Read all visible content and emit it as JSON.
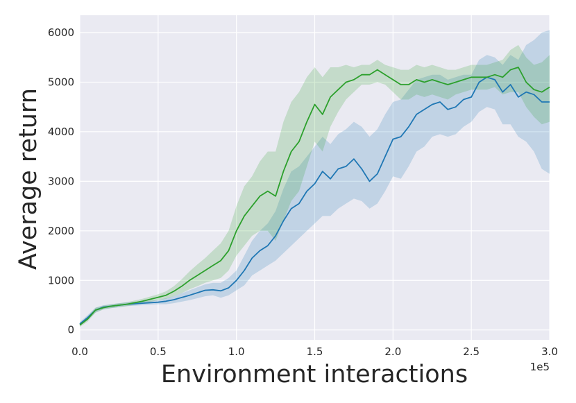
{
  "chart_data": {
    "type": "line",
    "title": "",
    "xlabel": "Environment interactions",
    "ylabel": "Average return",
    "x_offset_label": "1e5",
    "xlim": [
      0,
      3.0
    ],
    "ylim": [
      -200,
      6350
    ],
    "grid": true,
    "legend": "none",
    "background": "#eaeaf2",
    "x_ticks": [
      {
        "value": 0.0,
        "label": "0.0"
      },
      {
        "value": 0.5,
        "label": "0.5"
      },
      {
        "value": 1.0,
        "label": "1.0"
      },
      {
        "value": 1.5,
        "label": "1.5"
      },
      {
        "value": 2.0,
        "label": "2.0"
      },
      {
        "value": 2.5,
        "label": "2.5"
      },
      {
        "value": 3.0,
        "label": "3.0"
      }
    ],
    "y_ticks": [
      {
        "value": 0,
        "label": "0"
      },
      {
        "value": 1000,
        "label": "1000"
      },
      {
        "value": 2000,
        "label": "2000"
      },
      {
        "value": 3000,
        "label": "3000"
      },
      {
        "value": 4000,
        "label": "4000"
      },
      {
        "value": 5000,
        "label": "5000"
      },
      {
        "value": 6000,
        "label": "6000"
      }
    ],
    "series": [
      {
        "color": "#1f77b4",
        "x": [
          0.0,
          0.05,
          0.1,
          0.15,
          0.2,
          0.3,
          0.4,
          0.5,
          0.55,
          0.6,
          0.7,
          0.75,
          0.8,
          0.85,
          0.9,
          0.95,
          1.0,
          1.05,
          1.1,
          1.15,
          1.2,
          1.25,
          1.3,
          1.35,
          1.4,
          1.45,
          1.5,
          1.55,
          1.6,
          1.65,
          1.7,
          1.75,
          1.8,
          1.85,
          1.9,
          1.95,
          2.0,
          2.05,
          2.1,
          2.15,
          2.2,
          2.25,
          2.3,
          2.35,
          2.4,
          2.45,
          2.5,
          2.55,
          2.6,
          2.65,
          2.7,
          2.75,
          2.8,
          2.85,
          2.9,
          2.95,
          3.0
        ],
        "y": [
          120,
          250,
          400,
          460,
          480,
          520,
          540,
          560,
          580,
          610,
          700,
          750,
          800,
          810,
          790,
          850,
          1000,
          1200,
          1450,
          1600,
          1700,
          1900,
          2200,
          2450,
          2550,
          2800,
          2950,
          3200,
          3050,
          3250,
          3300,
          3450,
          3250,
          3000,
          3150,
          3500,
          3850,
          3900,
          4100,
          4350,
          4450,
          4550,
          4600,
          4450,
          4500,
          4650,
          4700,
          5000,
          5100,
          5050,
          4800,
          4950,
          4700,
          4800,
          4750,
          4600,
          4600
        ],
        "y_lower": [
          80,
          200,
          350,
          420,
          440,
          480,
          500,
          520,
          520,
          540,
          600,
          640,
          680,
          700,
          650,
          700,
          800,
          900,
          1100,
          1200,
          1300,
          1400,
          1550,
          1700,
          1850,
          2000,
          2150,
          2300,
          2300,
          2450,
          2550,
          2650,
          2600,
          2450,
          2550,
          2800,
          3100,
          3050,
          3300,
          3600,
          3700,
          3900,
          3950,
          3900,
          3950,
          4100,
          4200,
          4400,
          4500,
          4450,
          4150,
          4150,
          3900,
          3800,
          3600,
          3250,
          3150
        ],
        "y_upper": [
          160,
          300,
          450,
          500,
          520,
          560,
          580,
          600,
          640,
          680,
          800,
          860,
          920,
          950,
          950,
          1050,
          1200,
          1500,
          1800,
          2000,
          2150,
          2400,
          2850,
          3200,
          3300,
          3500,
          3700,
          3900,
          3750,
          3950,
          4050,
          4200,
          4100,
          3900,
          4050,
          4350,
          4600,
          4650,
          4850,
          5050,
          5100,
          5150,
          5150,
          5050,
          5100,
          5150,
          5150,
          5450,
          5550,
          5500,
          5350,
          5550,
          5450,
          5750,
          5850,
          6000,
          6050
        ]
      },
      {
        "color": "#2ca02c",
        "x": [
          0.0,
          0.05,
          0.1,
          0.15,
          0.2,
          0.3,
          0.4,
          0.5,
          0.55,
          0.6,
          0.65,
          0.7,
          0.75,
          0.8,
          0.85,
          0.9,
          0.95,
          1.0,
          1.05,
          1.1,
          1.15,
          1.2,
          1.25,
          1.3,
          1.35,
          1.4,
          1.45,
          1.5,
          1.55,
          1.6,
          1.65,
          1.7,
          1.75,
          1.8,
          1.85,
          1.9,
          1.95,
          2.0,
          2.05,
          2.1,
          2.15,
          2.2,
          2.25,
          2.3,
          2.35,
          2.4,
          2.45,
          2.5,
          2.55,
          2.6,
          2.65,
          2.7,
          2.75,
          2.8,
          2.85,
          2.9,
          2.95,
          3.0
        ],
        "y": [
          100,
          220,
          400,
          450,
          480,
          520,
          580,
          660,
          700,
          780,
          880,
          1000,
          1100,
          1200,
          1300,
          1400,
          1600,
          2000,
          2300,
          2500,
          2700,
          2800,
          2700,
          3200,
          3600,
          3800,
          4200,
          4550,
          4350,
          4700,
          4850,
          5000,
          5050,
          5150,
          5150,
          5250,
          5150,
          5050,
          4950,
          4950,
          5050,
          5000,
          5050,
          5000,
          4950,
          5000,
          5050,
          5100,
          5100,
          5100,
          5150,
          5100,
          5250,
          5300,
          5000,
          4850,
          4800,
          4900
        ],
        "y_lower": [
          60,
          170,
          350,
          410,
          440,
          480,
          530,
          600,
          630,
          680,
          740,
          820,
          880,
          950,
          1000,
          1050,
          1200,
          1500,
          1700,
          1900,
          2000,
          2000,
          1800,
          2200,
          2600,
          2800,
          3300,
          3800,
          3600,
          4100,
          4400,
          4650,
          4800,
          4950,
          4950,
          5000,
          4950,
          4800,
          4650,
          4650,
          4750,
          4700,
          4750,
          4700,
          4650,
          4750,
          4800,
          4850,
          4850,
          4850,
          4900,
          4750,
          4800,
          4800,
          4500,
          4300,
          4150,
          4200
        ],
        "y_upper": [
          140,
          270,
          450,
          490,
          520,
          560,
          630,
          720,
          780,
          880,
          1020,
          1180,
          1320,
          1450,
          1600,
          1750,
          2000,
          2500,
          2900,
          3100,
          3400,
          3600,
          3600,
          4200,
          4600,
          4800,
          5100,
          5300,
          5100,
          5300,
          5300,
          5350,
          5300,
          5350,
          5350,
          5450,
          5350,
          5300,
          5250,
          5250,
          5350,
          5300,
          5350,
          5300,
          5250,
          5250,
          5300,
          5350,
          5350,
          5350,
          5400,
          5450,
          5650,
          5750,
          5500,
          5350,
          5400,
          5550
        ]
      }
    ]
  }
}
